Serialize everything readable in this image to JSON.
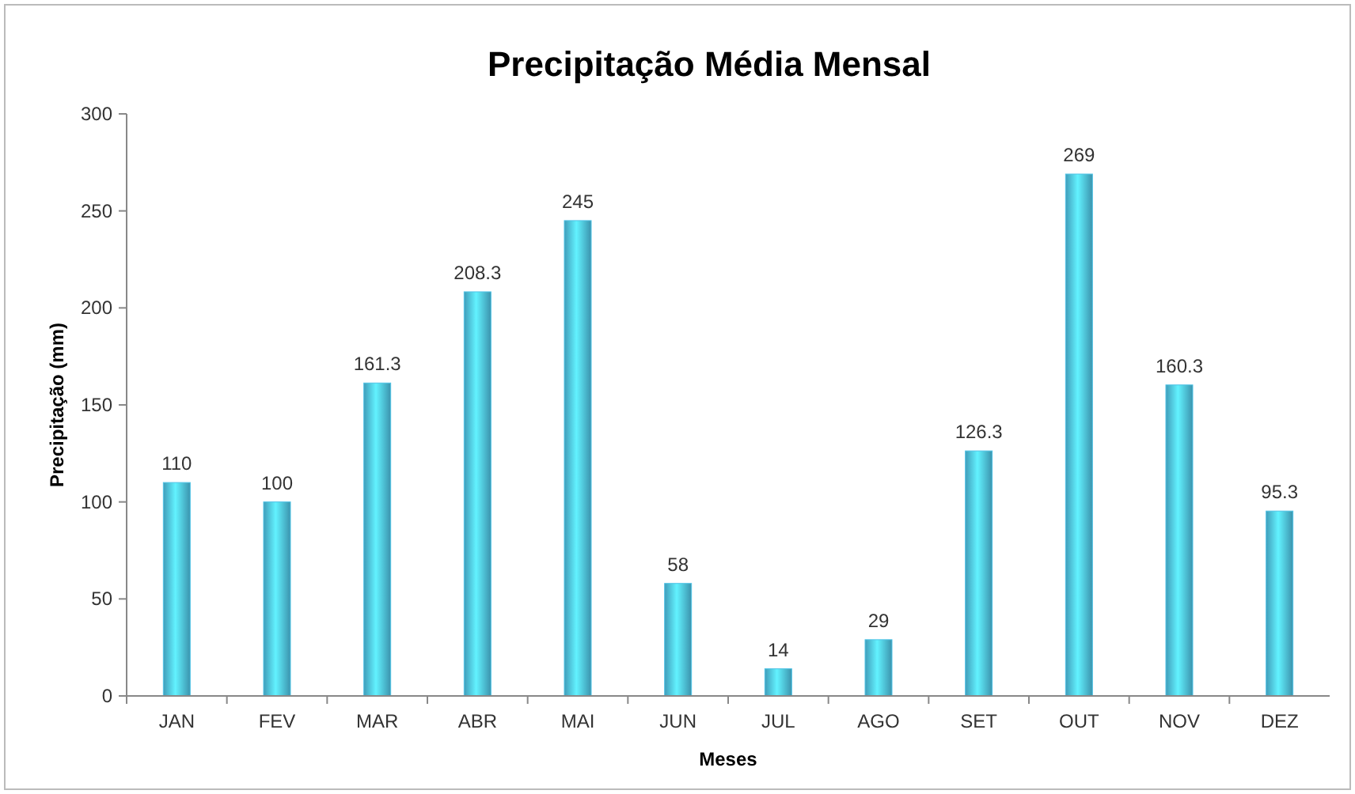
{
  "chart_data": {
    "type": "bar",
    "title": "Precipitação Média Mensal",
    "xlabel": "Meses",
    "ylabel": "Precipitação (mm)",
    "categories": [
      "JAN",
      "FEV",
      "MAR",
      "ABR",
      "MAI",
      "JUN",
      "JUL",
      "AGO",
      "SET",
      "OUT",
      "NOV",
      "DEZ"
    ],
    "values": [
      110,
      100,
      161.3,
      208.3,
      245,
      58,
      14,
      29,
      126.3,
      269,
      160.3,
      95.3
    ],
    "color": "#4fc3e6",
    "ylim": [
      0,
      300
    ],
    "yticks": [
      0,
      50,
      100,
      150,
      200,
      250,
      300
    ],
    "data_labels": true
  }
}
